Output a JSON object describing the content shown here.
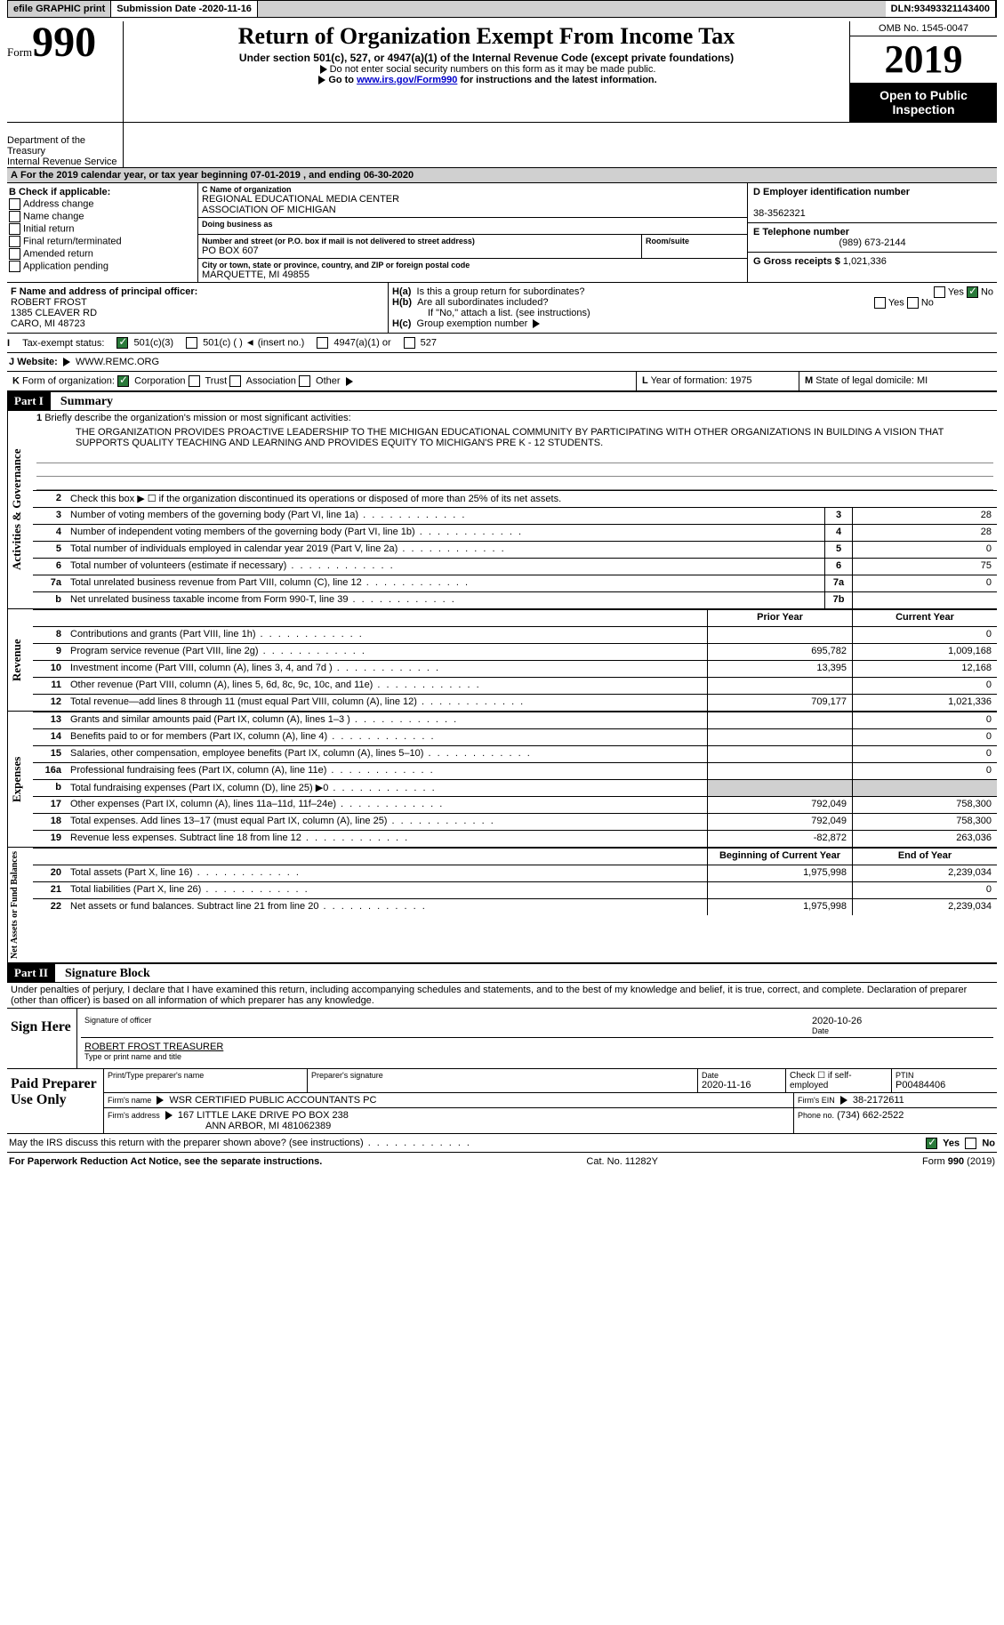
{
  "topbar": {
    "efile": "efile GRAPHIC print",
    "sub_lbl": "Submission Date - ",
    "sub_date": "2020-11-16",
    "dln_lbl": "DLN: ",
    "dln": "93493321143400"
  },
  "header": {
    "form_sm": "Form",
    "form_big": "990",
    "title": "Return of Organization Exempt From Income Tax",
    "subtitle": "Under section 501(c), 527, or 4947(a)(1) of the Internal Revenue Code (except private foundations)",
    "note1": "Do not enter social security numbers on this form as it may be made public.",
    "note2_a": "Go to ",
    "note2_link": "www.irs.gov/Form990",
    "note2_b": " for instructions and the latest information.",
    "omb": "OMB No. 1545-0047",
    "year": "2019",
    "open1": "Open to Public",
    "open2": "Inspection",
    "dept1": "Department of the",
    "dept2": "Treasury",
    "dept3": "Internal Revenue Service"
  },
  "period": {
    "a": "A",
    "txt": "For the 2019 calendar year, or tax year beginning ",
    "d1": "07-01-2019",
    "mid": "  , and ending ",
    "d2": "06-30-2020"
  },
  "B": {
    "hdr": "B Check if applicable:",
    "items": [
      "Address change",
      "Name change",
      "Initial return",
      "Final return/terminated",
      "Amended return",
      "Application pending"
    ]
  },
  "C": {
    "lbl": "C Name of organization",
    "name1": "REGIONAL EDUCATIONAL MEDIA CENTER",
    "name2": "ASSOCIATION OF MICHIGAN",
    "dba_lbl": "Doing business as",
    "dba": "",
    "addr_lbl": "Number and street (or P.O. box if mail is not delivered to street address)",
    "addr": "PO BOX 607",
    "room_lbl": "Room/suite",
    "room": "",
    "city_lbl": "City or town, state or province, country, and ZIP or foreign postal code",
    "city": "MARQUETTE, MI  49855"
  },
  "D": {
    "lbl": "D Employer identification number",
    "val": "38-3562321"
  },
  "E": {
    "lbl": "E Telephone number",
    "val": "(989) 673-2144"
  },
  "G": {
    "lbl": "G Gross receipts $ ",
    "val": "1,021,336"
  },
  "F": {
    "lbl": "F  Name and address of principal officer:",
    "l1": "ROBERT FROST",
    "l2": "1385 CLEAVER RD",
    "l3": "CARO, MI  48723"
  },
  "H": {
    "a_lbl": "H(a)",
    "a_txt": "Is this a group return for subordinates?",
    "yes": "Yes",
    "no": "No",
    "b_lbl": "H(b)",
    "b_txt": "Are all subordinates included?",
    "b_note": "If \"No,\" attach a list. (see instructions)",
    "c_lbl": "H(c)",
    "c_txt": "Group exemption number"
  },
  "I": {
    "lbl": "I",
    "txt": "Tax-exempt status:",
    "opts": [
      "501(c)(3)",
      "501(c) (  ) ◄ (insert no.)",
      "4947(a)(1) or",
      "527"
    ]
  },
  "J": {
    "lbl": "J",
    "txt": "Website:",
    "val": "WWW.REMC.ORG"
  },
  "K": {
    "lbl": "K",
    "txt": "Form of organization:",
    "opts": [
      "Corporation",
      "Trust",
      "Association",
      "Other"
    ]
  },
  "L": {
    "lbl": "L",
    "txt": "Year of formation: ",
    "val": "1975"
  },
  "M": {
    "lbl": "M",
    "txt": "State of legal domicile: ",
    "val": "MI"
  },
  "part1": {
    "hdr": "Part I",
    "name": "Summary",
    "l1_lbl": "1",
    "l1_txt": "Briefly describe the organization's mission or most significant activities:",
    "mission": "THE ORGANIZATION PROVIDES PROACTIVE LEADERSHIP TO THE MICHIGAN EDUCATIONAL COMMUNITY BY PARTICIPATING WITH OTHER ORGANIZATIONS IN BUILDING A VISION THAT SUPPORTS QUALITY TEACHING AND LEARNING AND PROVIDES EQUITY TO MICHIGAN'S PRE K - 12 STUDENTS.",
    "gov_label": "Activities & Governance",
    "l2": "Check this box ▶ ☐  if the organization discontinued its operations or disposed of more than 25% of its net assets.",
    "rows_gov": [
      {
        "n": "3",
        "t": "Number of voting members of the governing body (Part VI, line 1a)",
        "b": "3",
        "v": "28"
      },
      {
        "n": "4",
        "t": "Number of independent voting members of the governing body (Part VI, line 1b)",
        "b": "4",
        "v": "28"
      },
      {
        "n": "5",
        "t": "Total number of individuals employed in calendar year 2019 (Part V, line 2a)",
        "b": "5",
        "v": "0"
      },
      {
        "n": "6",
        "t": "Total number of volunteers (estimate if necessary)",
        "b": "6",
        "v": "75"
      },
      {
        "n": "7a",
        "t": "Total unrelated business revenue from Part VIII, column (C), line 12",
        "b": "7a",
        "v": "0"
      },
      {
        "n": "b",
        "t": "Net unrelated business taxable income from Form 990-T, line 39",
        "b": "7b",
        "v": ""
      }
    ],
    "rev_label": "Revenue",
    "hdr_prior": "Prior Year",
    "hdr_curr": "Current Year",
    "rows_rev": [
      {
        "n": "8",
        "t": "Contributions and grants (Part VIII, line 1h)",
        "p": "",
        "c": "0"
      },
      {
        "n": "9",
        "t": "Program service revenue (Part VIII, line 2g)",
        "p": "695,782",
        "c": "1,009,168"
      },
      {
        "n": "10",
        "t": "Investment income (Part VIII, column (A), lines 3, 4, and 7d )",
        "p": "13,395",
        "c": "12,168"
      },
      {
        "n": "11",
        "t": "Other revenue (Part VIII, column (A), lines 5, 6d, 8c, 9c, 10c, and 11e)",
        "p": "",
        "c": "0"
      },
      {
        "n": "12",
        "t": "Total revenue—add lines 8 through 11 (must equal Part VIII, column (A), line 12)",
        "p": "709,177",
        "c": "1,021,336"
      }
    ],
    "exp_label": "Expenses",
    "rows_exp": [
      {
        "n": "13",
        "t": "Grants and similar amounts paid (Part IX, column (A), lines 1–3 )",
        "p": "",
        "c": "0"
      },
      {
        "n": "14",
        "t": "Benefits paid to or for members (Part IX, column (A), line 4)",
        "p": "",
        "c": "0"
      },
      {
        "n": "15",
        "t": "Salaries, other compensation, employee benefits (Part IX, column (A), lines 5–10)",
        "p": "",
        "c": "0"
      },
      {
        "n": "16a",
        "t": "Professional fundraising fees (Part IX, column (A), line 11e)",
        "p": "",
        "c": "0"
      },
      {
        "n": "b",
        "t": "Total fundraising expenses (Part IX, column (D), line 25) ▶0",
        "p": "grey",
        "c": "grey"
      },
      {
        "n": "17",
        "t": "Other expenses (Part IX, column (A), lines 11a–11d, 11f–24e)",
        "p": "792,049",
        "c": "758,300"
      },
      {
        "n": "18",
        "t": "Total expenses. Add lines 13–17 (must equal Part IX, column (A), line 25)",
        "p": "792,049",
        "c": "758,300"
      },
      {
        "n": "19",
        "t": "Revenue less expenses. Subtract line 18 from line 12",
        "p": "-82,872",
        "c": "263,036"
      }
    ],
    "na_label": "Net Assets or Fund Balances",
    "hdr_beg": "Beginning of Current Year",
    "hdr_end": "End of Year",
    "rows_na": [
      {
        "n": "20",
        "t": "Total assets (Part X, line 16)",
        "p": "1,975,998",
        "c": "2,239,034"
      },
      {
        "n": "21",
        "t": "Total liabilities (Part X, line 26)",
        "p": "",
        "c": "0"
      },
      {
        "n": "22",
        "t": "Net assets or fund balances. Subtract line 21 from line 20",
        "p": "1,975,998",
        "c": "2,239,034"
      }
    ]
  },
  "part2": {
    "hdr": "Part II",
    "name": "Signature Block",
    "decl": "Under penalties of perjury, I declare that I have examined this return, including accompanying schedules and statements, and to the best of my knowledge and belief, it is true, correct, and complete. Declaration of preparer (other than officer) is based on all information of which preparer has any knowledge.",
    "sign_here": "Sign Here",
    "sig_lbl": "Signature of officer",
    "date_lbl": "Date",
    "sig_date": "2020-10-26",
    "name_title": "ROBERT FROST TREASURER",
    "name_lbl": "Type or print name and title",
    "paid": "Paid Preparer Use Only",
    "p_name_lbl": "Print/Type preparer's name",
    "p_sig_lbl": "Preparer's signature",
    "p_date_lbl": "Date",
    "p_date": "2020-11-16",
    "p_check": "Check ☐ if self-employed",
    "p_ptin_lbl": "PTIN",
    "p_ptin": "P00484406",
    "firm_name_lbl": "Firm's name",
    "firm_name": "WSR CERTIFIED PUBLIC ACCOUNTANTS PC",
    "firm_ein_lbl": "Firm's EIN",
    "firm_ein": "38-2172611",
    "firm_addr_lbl": "Firm's address",
    "firm_addr1": "167 LITTLE LAKE DRIVE PO BOX 238",
    "firm_addr2": "ANN ARBOR, MI  481062389",
    "phone_lbl": "Phone no.",
    "phone": "(734) 662-2522",
    "discuss": "May the IRS discuss this return with the preparer shown above? (see instructions)"
  },
  "footer": {
    "l": "For Paperwork Reduction Act Notice, see the separate instructions.",
    "m": "Cat. No. 11282Y",
    "r": "Form 990 (2019)"
  }
}
